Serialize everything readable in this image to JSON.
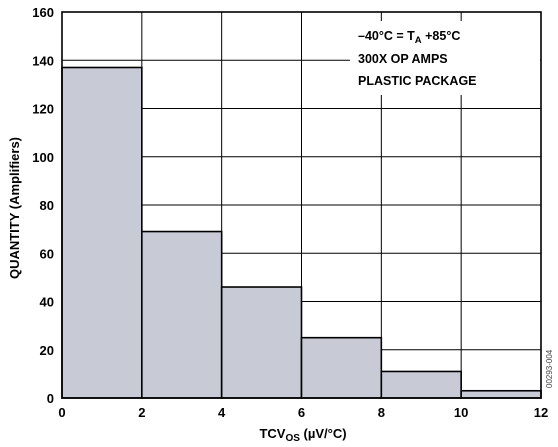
{
  "chart_data": {
    "type": "bar",
    "bins": [
      {
        "from": 0,
        "to": 2,
        "value": 137
      },
      {
        "from": 2,
        "to": 4,
        "value": 69
      },
      {
        "from": 4,
        "to": 6,
        "value": 46
      },
      {
        "from": 6,
        "to": 8,
        "value": 25
      },
      {
        "from": 8,
        "to": 10,
        "value": 11
      },
      {
        "from": 10,
        "to": 12,
        "value": 3
      }
    ],
    "x_ticks": [
      "0",
      "2",
      "4",
      "6",
      "8",
      "10",
      "12"
    ],
    "y_ticks": [
      "0",
      "20",
      "40",
      "60",
      "80",
      "100",
      "120",
      "140",
      "160"
    ],
    "xlim": [
      0,
      12
    ],
    "ylim": [
      0,
      160
    ],
    "ylabel": "QUANTITY (Amplifiers)",
    "xlabel": {
      "main": "TCV",
      "sub": "OS",
      "unit": " (µV/°C)"
    },
    "grid": true,
    "bar_color": "#c8cbd6",
    "annotation": {
      "line1": {
        "pre": "–40°C = T",
        "sub": "A",
        "post": " +85°C"
      },
      "line2": "300X OP AMPS",
      "line3": "PLASTIC PACKAGE"
    },
    "figure_code": "00293-004"
  }
}
